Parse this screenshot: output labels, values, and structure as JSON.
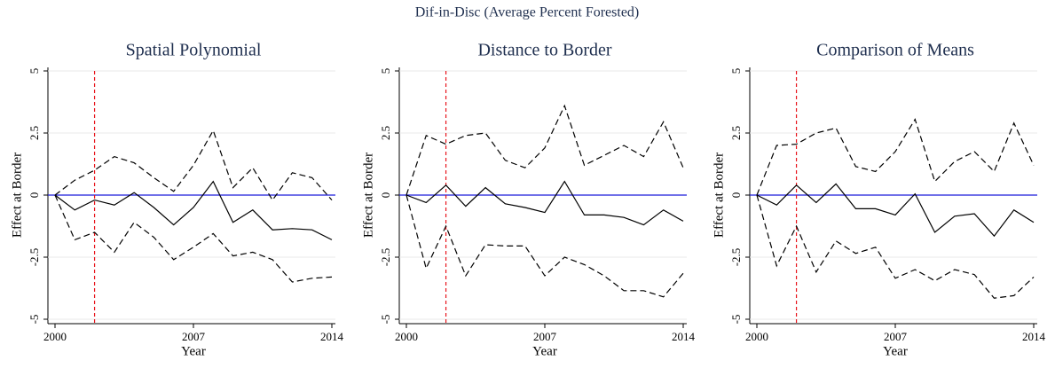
{
  "title": "Dif-in-Disc (Average Percent Forested)",
  "chart_data": [
    {
      "type": "line",
      "title": "Spatial Polynomial",
      "xlabel": "Year",
      "ylabel": "Effect at Border",
      "x": [
        2000,
        2001,
        2002,
        2003,
        2004,
        2005,
        2006,
        2007,
        2008,
        2009,
        2010,
        2011,
        2012,
        2013,
        2014
      ],
      "xlim": [
        2000,
        2014
      ],
      "xticks": [
        2000,
        2007,
        2014
      ],
      "ylim": [
        -5,
        5
      ],
      "yticks": [
        -5,
        -2.5,
        0,
        2.5,
        5
      ],
      "grid": true,
      "vline": 2002,
      "vline_color": "#e8141b",
      "hline": 0,
      "hline_color": "#1a1adb",
      "series": [
        {
          "color": "#000000",
          "dash": false,
          "values": [
            0,
            -0.6,
            -0.2,
            -0.4,
            0.1,
            -0.5,
            -1.2,
            -0.5,
            0.55,
            -1.1,
            -0.6,
            -1.4,
            -1.35,
            -1.4,
            -1.8
          ]
        },
        {
          "color": "#000000",
          "dash": true,
          "values": [
            0,
            0.6,
            1.0,
            1.55,
            1.3,
            0.7,
            0.15,
            1.2,
            2.6,
            0.3,
            1.1,
            -0.2,
            0.9,
            0.7,
            -0.2
          ]
        },
        {
          "color": "#000000",
          "dash": true,
          "values": [
            0,
            -1.8,
            -1.5,
            -2.3,
            -1.1,
            -1.7,
            -2.6,
            -2.1,
            -1.55,
            -2.45,
            -2.3,
            -2.6,
            -3.5,
            -3.35,
            -3.3
          ]
        }
      ]
    },
    {
      "type": "line",
      "title": "Distance to Border",
      "xlabel": "Year",
      "ylabel": "Effect at Border",
      "x": [
        2000,
        2001,
        2002,
        2003,
        2004,
        2005,
        2006,
        2007,
        2008,
        2009,
        2010,
        2011,
        2012,
        2013,
        2014
      ],
      "xlim": [
        2000,
        2014
      ],
      "xticks": [
        2000,
        2007,
        2014
      ],
      "ylim": [
        -5,
        5
      ],
      "yticks": [
        -5,
        -2.5,
        0,
        2.5,
        5
      ],
      "grid": true,
      "vline": 2002,
      "vline_color": "#e8141b",
      "hline": 0,
      "hline_color": "#1a1adb",
      "series": [
        {
          "color": "#000000",
          "dash": false,
          "values": [
            0,
            -0.3,
            0.4,
            -0.45,
            0.3,
            -0.35,
            -0.5,
            -0.7,
            0.55,
            -0.8,
            -0.8,
            -0.9,
            -1.2,
            -0.6,
            -1.05
          ]
        },
        {
          "color": "#000000",
          "dash": true,
          "values": [
            0,
            2.4,
            2.05,
            2.4,
            2.5,
            1.4,
            1.1,
            1.9,
            3.6,
            1.2,
            1.6,
            2.0,
            1.55,
            2.95,
            1.1
          ]
        },
        {
          "color": "#000000",
          "dash": true,
          "values": [
            0,
            -2.95,
            -1.25,
            -3.25,
            -2.0,
            -2.05,
            -2.05,
            -3.25,
            -2.5,
            -2.8,
            -3.25,
            -3.85,
            -3.85,
            -4.1,
            -3.15
          ]
        }
      ]
    },
    {
      "type": "line",
      "title": "Comparison of Means",
      "xlabel": "Year",
      "ylabel": "Effect at Border",
      "x": [
        2000,
        2001,
        2002,
        2003,
        2004,
        2005,
        2006,
        2007,
        2008,
        2009,
        2010,
        2011,
        2012,
        2013,
        2014
      ],
      "xlim": [
        2000,
        2014
      ],
      "xticks": [
        2000,
        2007,
        2014
      ],
      "ylim": [
        -5,
        5
      ],
      "yticks": [
        -5,
        -2.5,
        0,
        2.5,
        5
      ],
      "grid": true,
      "vline": 2002,
      "vline_color": "#e8141b",
      "hline": 0,
      "hline_color": "#1a1adb",
      "series": [
        {
          "color": "#000000",
          "dash": false,
          "values": [
            0,
            -0.4,
            0.4,
            -0.3,
            0.45,
            -0.55,
            -0.55,
            -0.8,
            0.05,
            -1.5,
            -0.85,
            -0.75,
            -1.65,
            -0.6,
            -1.1
          ]
        },
        {
          "color": "#000000",
          "dash": true,
          "values": [
            0,
            2.0,
            2.05,
            2.5,
            2.7,
            1.15,
            0.95,
            1.75,
            3.05,
            0.55,
            1.35,
            1.75,
            0.95,
            2.9,
            1.2
          ]
        },
        {
          "color": "#000000",
          "dash": true,
          "values": [
            0,
            -2.85,
            -1.25,
            -3.1,
            -1.85,
            -2.35,
            -2.1,
            -3.35,
            -3.0,
            -3.45,
            -3.0,
            -3.2,
            -4.15,
            -4.05,
            -3.3
          ]
        }
      ]
    }
  ]
}
